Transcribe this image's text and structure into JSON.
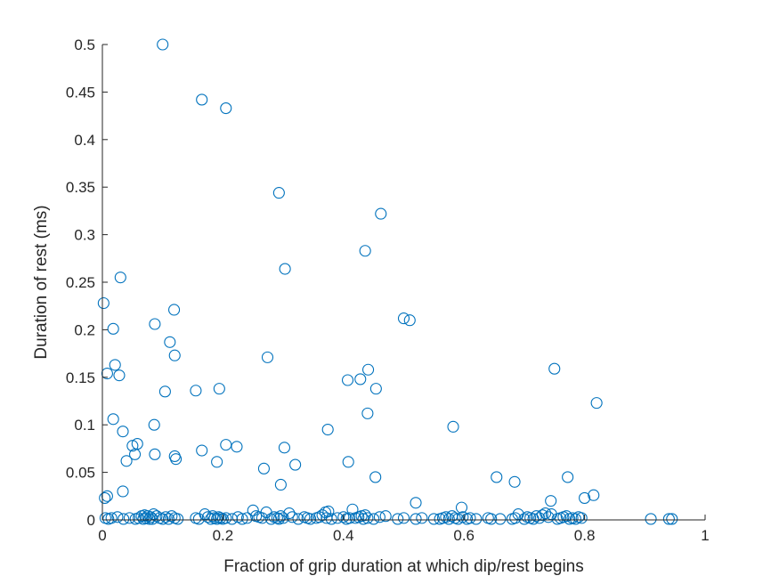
{
  "chart_data": {
    "type": "scatter",
    "title": "",
    "xlabel": "Fraction of grip duration at which dip/rest begins",
    "ylabel": "Duration of rest (ms)",
    "xlim": [
      0,
      1
    ],
    "ylim": [
      0,
      0.5
    ],
    "xticks": [
      "0",
      "0.2",
      "0.4",
      "0.6",
      "0.8",
      "1"
    ],
    "yticks": [
      "0",
      "0.05",
      "0.1",
      "0.15",
      "0.2",
      "0.25",
      "0.3",
      "0.35",
      "0.4",
      "0.45",
      "0.5"
    ],
    "grid": false,
    "marker": "open-circle",
    "color": "#0072BD",
    "series": [
      {
        "x": [
          0.1,
          0.165,
          0.205,
          0.293,
          0.462,
          0.436,
          0.303,
          0.03,
          0.002,
          0.119,
          0.087,
          0.5,
          0.51,
          0.018,
          0.112,
          0.12,
          0.274,
          0.008,
          0.021,
          0.028,
          0.441,
          0.75,
          0.428,
          0.407,
          0.454,
          0.104,
          0.155,
          0.194,
          0.82,
          0.018,
          0.44,
          0.086,
          0.582,
          0.374,
          0.034,
          0.05,
          0.058,
          0.205,
          0.223,
          0.302,
          0.165,
          0.054,
          0.087,
          0.12,
          0.122,
          0.04,
          0.19,
          0.268,
          0.32,
          0.408,
          0.453,
          0.654,
          0.684,
          0.772,
          0.296,
          0.034,
          0.8,
          0.815,
          0.004,
          0.008,
          0.52,
          0.744,
          0.596
        ],
        "y": [
          0.5,
          0.442,
          0.433,
          0.344,
          0.322,
          0.283,
          0.264,
          0.255,
          0.228,
          0.221,
          0.206,
          0.212,
          0.21,
          0.201,
          0.187,
          0.173,
          0.171,
          0.154,
          0.163,
          0.152,
          0.158,
          0.159,
          0.148,
          0.147,
          0.138,
          0.135,
          0.136,
          0.138,
          0.123,
          0.106,
          0.112,
          0.1,
          0.098,
          0.095,
          0.093,
          0.078,
          0.08,
          0.079,
          0.077,
          0.076,
          0.073,
          0.069,
          0.069,
          0.067,
          0.064,
          0.062,
          0.061,
          0.054,
          0.058,
          0.061,
          0.045,
          0.045,
          0.04,
          0.045,
          0.037,
          0.03,
          0.023,
          0.026,
          0.023,
          0.025,
          0.018,
          0.02,
          0.013
        ]
      },
      {
        "x": [
          0.005,
          0.01,
          0.015,
          0.025,
          0.035,
          0.045,
          0.055,
          0.06,
          0.065,
          0.068,
          0.07,
          0.072,
          0.075,
          0.078,
          0.08,
          0.083,
          0.085,
          0.09,
          0.095,
          0.1,
          0.105,
          0.11,
          0.115,
          0.12,
          0.125,
          0.155,
          0.16,
          0.17,
          0.175,
          0.18,
          0.183,
          0.186,
          0.19,
          0.193,
          0.196,
          0.2,
          0.205,
          0.215,
          0.225,
          0.232,
          0.24,
          0.25,
          0.255,
          0.26,
          0.265,
          0.272,
          0.28,
          0.285,
          0.29,
          0.293,
          0.296,
          0.3,
          0.31,
          0.315,
          0.325,
          0.335,
          0.34,
          0.345,
          0.355,
          0.36,
          0.365,
          0.37,
          0.372,
          0.375,
          0.38,
          0.39,
          0.4,
          0.405,
          0.41,
          0.415,
          0.42,
          0.425,
          0.43,
          0.433,
          0.436,
          0.44,
          0.45,
          0.46,
          0.47,
          0.49,
          0.5,
          0.52,
          0.53,
          0.55,
          0.56,
          0.565,
          0.57,
          0.575,
          0.58,
          0.585,
          0.59,
          0.598,
          0.605,
          0.61,
          0.62,
          0.64,
          0.645,
          0.66,
          0.68,
          0.685,
          0.69,
          0.7,
          0.705,
          0.71,
          0.715,
          0.72,
          0.725,
          0.73,
          0.735,
          0.74,
          0.745,
          0.755,
          0.76,
          0.765,
          0.77,
          0.775,
          0.78,
          0.785,
          0.79,
          0.795,
          0.91,
          0.94,
          0.945
        ],
        "y": [
          0.002,
          0.001,
          0.002,
          0.003,
          0.001,
          0.002,
          0.001,
          0.002,
          0.004,
          0.001,
          0.005,
          0.002,
          0.004,
          0.001,
          0.003,
          0.001,
          0.006,
          0.004,
          0.002,
          0.001,
          0.003,
          0.001,
          0.004,
          0.002,
          0.001,
          0.002,
          0.001,
          0.006,
          0.003,
          0.001,
          0.004,
          0.002,
          0.001,
          0.003,
          0.002,
          0.001,
          0.002,
          0.001,
          0.003,
          0.001,
          0.002,
          0.01,
          0.004,
          0.003,
          0.002,
          0.008,
          0.001,
          0.003,
          0.002,
          0.001,
          0.004,
          0.002,
          0.007,
          0.003,
          0.001,
          0.003,
          0.002,
          0.001,
          0.002,
          0.003,
          0.005,
          0.008,
          0.002,
          0.009,
          0.001,
          0.002,
          0.003,
          0.001,
          0.002,
          0.011,
          0.002,
          0.003,
          0.004,
          0.001,
          0.005,
          0.002,
          0.001,
          0.003,
          0.004,
          0.001,
          0.002,
          0.001,
          0.002,
          0.001,
          0.001,
          0.002,
          0.003,
          0.001,
          0.004,
          0.002,
          0.001,
          0.003,
          0.001,
          0.002,
          0.001,
          0.002,
          0.001,
          0.001,
          0.001,
          0.002,
          0.006,
          0.001,
          0.003,
          0.002,
          0.001,
          0.004,
          0.002,
          0.005,
          0.007,
          0.003,
          0.006,
          0.001,
          0.002,
          0.003,
          0.004,
          0.001,
          0.002,
          0.001,
          0.003,
          0.002,
          0.001,
          0.001,
          0.001
        ]
      }
    ]
  }
}
